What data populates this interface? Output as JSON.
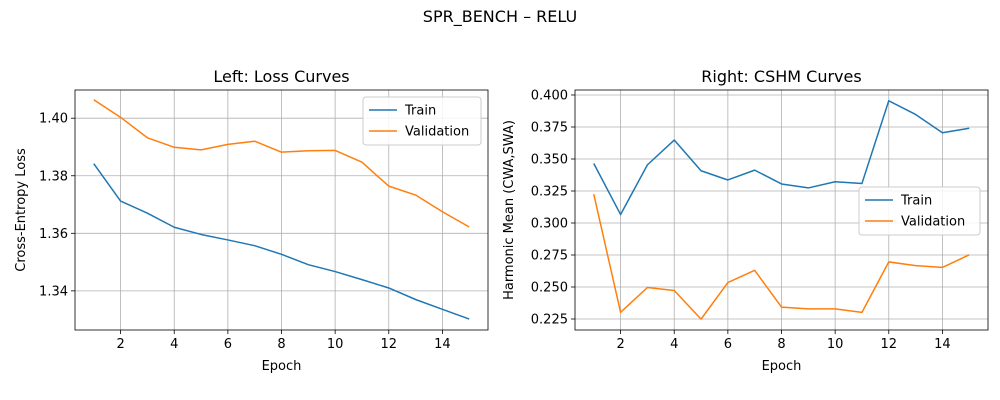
{
  "figure": {
    "title": "SPR_BENCH – RELU"
  },
  "chart_data": [
    {
      "type": "line",
      "title": "Left: Loss Curves",
      "xlabel": "Epoch",
      "ylabel": "Cross-Entropy Loss",
      "x": [
        1,
        2,
        3,
        4,
        5,
        6,
        7,
        8,
        9,
        10,
        11,
        12,
        13,
        14,
        15
      ],
      "xlim": [
        0.3,
        15.7
      ],
      "ylim": [
        1.3264,
        1.4098
      ],
      "xticks": [
        2,
        4,
        6,
        8,
        10,
        12,
        14
      ],
      "yticks": [
        1.34,
        1.36,
        1.38,
        1.4
      ],
      "ytick_labels": [
        "1.34",
        "1.36",
        "1.38",
        "1.40"
      ],
      "grid": true,
      "legend": "top-right",
      "series": [
        {
          "name": "Train",
          "color": "#1f77b4",
          "values": [
            1.3842,
            1.3712,
            1.367,
            1.3621,
            1.3596,
            1.3577,
            1.3557,
            1.3527,
            1.3491,
            1.3467,
            1.3439,
            1.341,
            1.337,
            1.3336,
            1.3302
          ]
        },
        {
          "name": "Validation",
          "color": "#ff7f0e",
          "values": [
            1.4064,
            1.4003,
            1.3932,
            1.3899,
            1.389,
            1.3909,
            1.392,
            1.3882,
            1.3887,
            1.3888,
            1.3847,
            1.3764,
            1.3733,
            1.3675,
            1.3622
          ]
        }
      ]
    },
    {
      "type": "line",
      "title": "Right: CSHM Curves",
      "xlabel": "Epoch",
      "ylabel": "Harmonic Mean (CWA,SWA)",
      "x": [
        1,
        2,
        3,
        4,
        5,
        6,
        7,
        8,
        9,
        10,
        11,
        12,
        13,
        14,
        15
      ],
      "xlim": [
        0.3,
        15.7
      ],
      "ylim": [
        0.2164,
        0.4039
      ],
      "xticks": [
        2,
        4,
        6,
        8,
        10,
        12,
        14
      ],
      "yticks": [
        0.225,
        0.25,
        0.275,
        0.3,
        0.325,
        0.35,
        0.375,
        0.4
      ],
      "ytick_labels": [
        "0.225",
        "0.250",
        "0.275",
        "0.300",
        "0.325",
        "0.350",
        "0.375",
        "0.400"
      ],
      "grid": true,
      "legend": "center-right",
      "series": [
        {
          "name": "Train",
          "color": "#1f77b4",
          "values": [
            0.3465,
            0.3066,
            0.3454,
            0.3648,
            0.3408,
            0.3336,
            0.3413,
            0.3305,
            0.3274,
            0.3322,
            0.3309,
            0.3955,
            0.3848,
            0.3705,
            0.374
          ]
        },
        {
          "name": "Validation",
          "color": "#ff7f0e",
          "values": [
            0.3225,
            0.2302,
            0.2496,
            0.2473,
            0.2249,
            0.2535,
            0.263,
            0.2343,
            0.2329,
            0.2329,
            0.2302,
            0.2696,
            0.2667,
            0.2653,
            0.2751
          ]
        }
      ]
    }
  ]
}
